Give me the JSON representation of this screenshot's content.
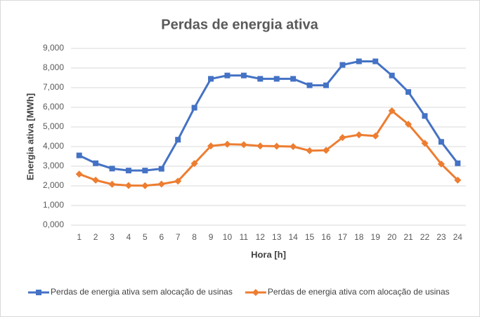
{
  "chart_data": {
    "type": "line",
    "title": "Perdas de energia ativa",
    "x_label": "Hora [h]",
    "y_label": "Energia ativa [MWh]",
    "categories": [
      "1",
      "2",
      "3",
      "4",
      "5",
      "6",
      "7",
      "8",
      "9",
      "10",
      "11",
      "12",
      "13",
      "14",
      "15",
      "16",
      "17",
      "18",
      "19",
      "20",
      "21",
      "22",
      "23",
      "24"
    ],
    "series": [
      {
        "name": "Perdas de energia ativa sem alocação de usinas",
        "color": "#4472c4",
        "marker": "square",
        "values": [
          3550,
          3150,
          2880,
          2780,
          2780,
          2870,
          4350,
          5980,
          7450,
          7620,
          7620,
          7450,
          7450,
          7450,
          7120,
          7120,
          8160,
          8340,
          8340,
          7620,
          6780,
          5560,
          4240,
          3150
        ]
      },
      {
        "name": "Perdas de energia ativa com alocação de usinas",
        "color": "#ed7d31",
        "marker": "diamond",
        "values": [
          2600,
          2290,
          2080,
          2020,
          2010,
          2090,
          2240,
          3140,
          4030,
          4120,
          4100,
          4030,
          4020,
          4000,
          3790,
          3810,
          4460,
          4600,
          4540,
          5820,
          5140,
          4170,
          3110,
          2290
        ]
      }
    ],
    "ylim": [
      0,
      9000
    ],
    "yticks": [
      {
        "value": 0,
        "label": "0,000"
      },
      {
        "value": 1000,
        "label": "1,000"
      },
      {
        "value": 2000,
        "label": "2,000"
      },
      {
        "value": 3000,
        "label": "3,000"
      },
      {
        "value": 4000,
        "label": "4,000"
      },
      {
        "value": 5000,
        "label": "5,000"
      },
      {
        "value": 6000,
        "label": "6,000"
      },
      {
        "value": 7000,
        "label": "7,000"
      },
      {
        "value": 8000,
        "label": "8,000"
      },
      {
        "value": 9000,
        "label": "9,000"
      }
    ],
    "grid": true,
    "legend": "bottom"
  }
}
